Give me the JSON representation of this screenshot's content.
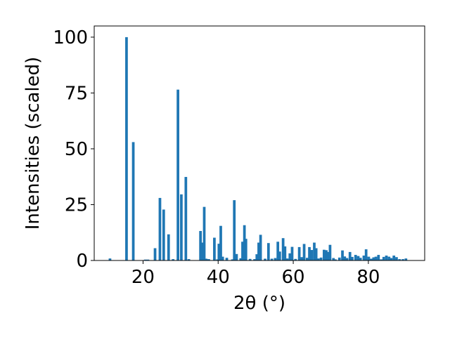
{
  "chart_data": {
    "type": "bar",
    "title": "",
    "xlabel": "2θ (°)",
    "ylabel": "Intensities (scaled)",
    "xlim": [
      7,
      95
    ],
    "ylim": [
      0,
      105
    ],
    "xticks": [
      20,
      40,
      60,
      80
    ],
    "yticks": [
      0,
      25,
      50,
      75,
      100
    ],
    "grid": false,
    "legend": "none",
    "bar_color": "#1f77b4",
    "bar_width": 0.7,
    "series": [
      {
        "x": [
          11.2,
          15.6,
          17.4,
          20.6,
          21.3,
          23.2,
          24.5,
          25.5,
          26.8,
          28.0,
          29.3,
          30.2,
          31.4,
          32.2,
          35.3,
          35.8,
          36.3,
          36.8,
          37.5,
          39.0,
          39.8,
          40.2,
          40.7,
          41.2,
          42.3,
          43.8,
          44.3,
          44.9,
          46.0,
          46.5,
          47.0,
          47.4,
          48.5,
          49.7,
          50.3,
          50.8,
          51.3,
          52.5,
          53.4,
          54.3,
          55.2,
          55.9,
          56.4,
          57.3,
          57.8,
          58.4,
          59.1,
          59.7,
          60.6,
          61.6,
          62.3,
          62.9,
          63.7,
          64.3,
          64.9,
          65.6,
          66.1,
          66.7,
          67.4,
          68.2,
          68.8,
          69.3,
          69.8,
          70.7,
          71.2,
          72.3,
          73.1,
          73.7,
          74.3,
          75.1,
          75.7,
          76.6,
          77.3,
          77.9,
          78.8,
          79.4,
          80.1,
          80.7,
          81.4,
          82.0,
          82.7,
          83.4,
          84.1,
          84.8,
          85.5,
          86.1,
          86.8,
          87.5,
          88.3,
          89.2,
          90.0
        ],
        "values": [
          0.9,
          100.0,
          53.0,
          0.4,
          0.4,
          5.5,
          28.0,
          22.8,
          11.7,
          0.6,
          76.5,
          29.6,
          37.4,
          0.6,
          13.2,
          8.0,
          24.0,
          0.8,
          0.6,
          10.2,
          0.5,
          7.5,
          15.5,
          1.7,
          1.2,
          0.5,
          27.0,
          2.9,
          1.0,
          8.4,
          15.8,
          9.7,
          0.7,
          0.6,
          2.8,
          8.0,
          11.5,
          0.8,
          7.8,
          0.8,
          1.1,
          8.4,
          4.0,
          10.0,
          6.3,
          0.9,
          3.2,
          6.1,
          0.7,
          6.0,
          1.5,
          7.4,
          1.2,
          6.0,
          4.7,
          8.0,
          5.5,
          0.9,
          1.3,
          4.8,
          4.6,
          3.8,
          7.0,
          1.1,
          0.5,
          1.3,
          4.5,
          1.8,
          1.1,
          3.8,
          1.6,
          2.5,
          2.0,
          1.2,
          2.2,
          5.0,
          1.7,
          0.8,
          1.4,
          1.7,
          2.5,
          0.5,
          1.6,
          2.2,
          1.7,
          1.1,
          2.2,
          1.5,
          0.6,
          0.6,
          0.9
        ]
      }
    ]
  }
}
